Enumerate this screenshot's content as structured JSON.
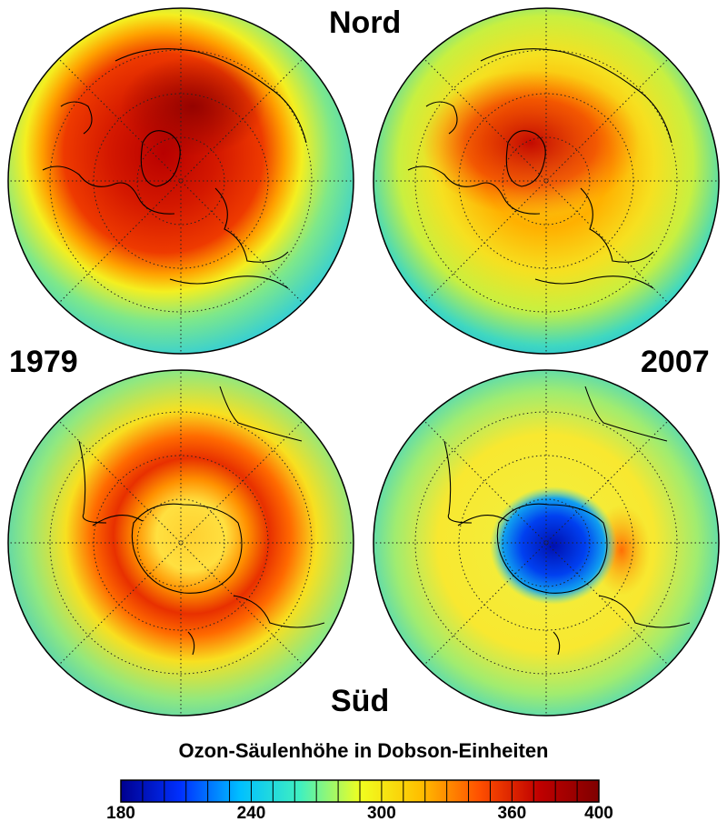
{
  "labels": {
    "north": "Nord",
    "south": "Süd",
    "year_left": "1979",
    "year_right": "2007"
  },
  "colorbar": {
    "title": "Ozon-Säulenhöhe in Dobson-Einheiten",
    "min": 180,
    "max": 400,
    "ticks": [
      "180",
      "240",
      "300",
      "360",
      "400"
    ],
    "tick_values": [
      180,
      240,
      300,
      360,
      400
    ],
    "segments": 22,
    "colors": [
      "#00008f",
      "#0030ff",
      "#00c0ff",
      "#40f0c0",
      "#f0ff20",
      "#ffc000",
      "#ff5000",
      "#c00000",
      "#800000"
    ]
  },
  "maps": [
    {
      "id": "north-1979",
      "hemisphere": "Nord",
      "year": "1979",
      "ozone_pattern": "high over arctic (~380-400 DU)"
    },
    {
      "id": "north-2007",
      "hemisphere": "Nord",
      "year": "2007",
      "ozone_pattern": "reduced arctic maximum (~360 DU)"
    },
    {
      "id": "south-1979",
      "hemisphere": "Süd",
      "year": "1979",
      "ozone_pattern": "ring of high ozone around Antarctica"
    },
    {
      "id": "south-2007",
      "hemisphere": "Süd",
      "year": "2007",
      "ozone_pattern": "ozone hole over Antarctica (~180-220 DU)"
    }
  ]
}
